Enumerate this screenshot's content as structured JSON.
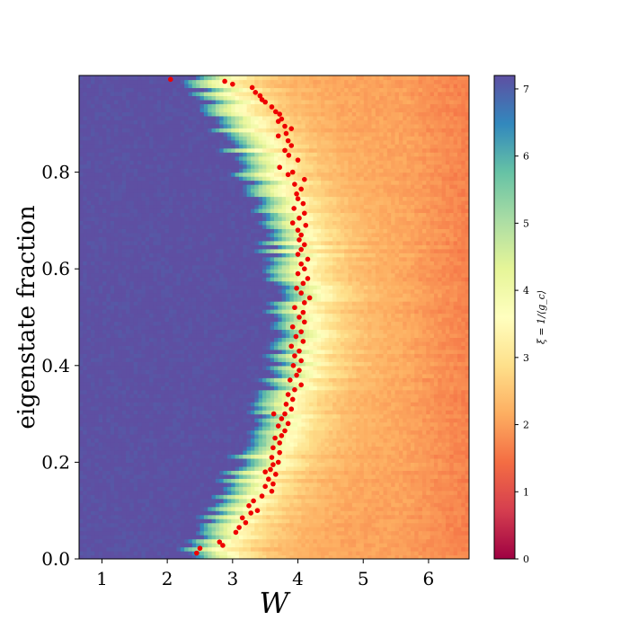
{
  "chart_data": {
    "type": "heatmap",
    "title": "",
    "xlabel": "W",
    "ylabel": "eigenstate fraction",
    "xlim": [
      0.65,
      6.62
    ],
    "ylim": [
      0.0,
      1.0
    ],
    "x_ticks": [
      {
        "value": 1,
        "label": "1"
      },
      {
        "value": 2,
        "label": "2"
      },
      {
        "value": 3,
        "label": "3"
      },
      {
        "value": 4,
        "label": "4"
      },
      {
        "value": 5,
        "label": "5"
      },
      {
        "value": 6,
        "label": "6"
      }
    ],
    "y_ticks": [
      {
        "value": 0.0,
        "label": "0.0"
      },
      {
        "value": 0.2,
        "label": "0.2"
      },
      {
        "value": 0.4,
        "label": "0.4"
      },
      {
        "value": 0.6,
        "label": "0.6"
      },
      {
        "value": 0.8,
        "label": "0.8"
      }
    ],
    "colormap": "Spectral",
    "colorbar": {
      "label": "ξ = 1/⟨g_c⟩",
      "range": [
        0,
        7.2
      ],
      "ticks": [
        {
          "value": 0,
          "label": "0"
        },
        {
          "value": 1,
          "label": "1"
        },
        {
          "value": 2,
          "label": "2"
        },
        {
          "value": 3,
          "label": "3"
        },
        {
          "value": 4,
          "label": "4"
        },
        {
          "value": 5,
          "label": "5"
        },
        {
          "value": 6,
          "label": "6"
        },
        {
          "value": 7,
          "label": "7"
        }
      ]
    },
    "marker_color": "#ee0000",
    "critical_points": [
      [
        2.05,
        0.992
      ],
      [
        2.88,
        0.988
      ],
      [
        3.0,
        0.982
      ],
      [
        3.3,
        0.975
      ],
      [
        3.35,
        0.965
      ],
      [
        3.42,
        0.958
      ],
      [
        3.45,
        0.95
      ],
      [
        3.5,
        0.945
      ],
      [
        3.6,
        0.935
      ],
      [
        3.66,
        0.925
      ],
      [
        3.72,
        0.92
      ],
      [
        3.75,
        0.91
      ],
      [
        3.7,
        0.905
      ],
      [
        3.8,
        0.895
      ],
      [
        3.9,
        0.89
      ],
      [
        3.82,
        0.88
      ],
      [
        3.7,
        0.875
      ],
      [
        3.85,
        0.865
      ],
      [
        3.9,
        0.855
      ],
      [
        3.8,
        0.845
      ],
      [
        3.86,
        0.835
      ],
      [
        4.0,
        0.825
      ],
      [
        3.72,
        0.81
      ],
      [
        3.92,
        0.8
      ],
      [
        3.85,
        0.795
      ],
      [
        4.1,
        0.785
      ],
      [
        3.95,
        0.775
      ],
      [
        4.05,
        0.765
      ],
      [
        3.98,
        0.755
      ],
      [
        4.0,
        0.745
      ],
      [
        4.08,
        0.735
      ],
      [
        3.94,
        0.725
      ],
      [
        4.1,
        0.715
      ],
      [
        4.02,
        0.705
      ],
      [
        3.92,
        0.695
      ],
      [
        4.12,
        0.69
      ],
      [
        4.0,
        0.68
      ],
      [
        4.05,
        0.67
      ],
      [
        4.02,
        0.66
      ],
      [
        4.1,
        0.65
      ],
      [
        4.05,
        0.64
      ],
      [
        4.0,
        0.63
      ],
      [
        4.15,
        0.62
      ],
      [
        4.05,
        0.61
      ],
      [
        4.1,
        0.6
      ],
      [
        4.0,
        0.59
      ],
      [
        4.15,
        0.58
      ],
      [
        4.08,
        0.57
      ],
      [
        3.98,
        0.56
      ],
      [
        4.05,
        0.55
      ],
      [
        4.18,
        0.54
      ],
      [
        4.1,
        0.53
      ],
      [
        3.95,
        0.52
      ],
      [
        4.08,
        0.51
      ],
      [
        4.02,
        0.5
      ],
      [
        4.1,
        0.49
      ],
      [
        3.92,
        0.48
      ],
      [
        4.05,
        0.47
      ],
      [
        3.97,
        0.46
      ],
      [
        4.08,
        0.45
      ],
      [
        3.9,
        0.44
      ],
      [
        4.02,
        0.43
      ],
      [
        3.95,
        0.42
      ],
      [
        4.05,
        0.41
      ],
      [
        3.93,
        0.4
      ],
      [
        4.02,
        0.39
      ],
      [
        3.98,
        0.38
      ],
      [
        3.88,
        0.37
      ],
      [
        4.05,
        0.36
      ],
      [
        3.95,
        0.35
      ],
      [
        3.85,
        0.34
      ],
      [
        3.92,
        0.33
      ],
      [
        3.82,
        0.32
      ],
      [
        3.9,
        0.31
      ],
      [
        3.8,
        0.3
      ],
      [
        3.63,
        0.3
      ],
      [
        3.75,
        0.29
      ],
      [
        3.85,
        0.28
      ],
      [
        3.7,
        0.275
      ],
      [
        3.8,
        0.265
      ],
      [
        3.75,
        0.255
      ],
      [
        3.65,
        0.25
      ],
      [
        3.72,
        0.24
      ],
      [
        3.62,
        0.23
      ],
      [
        3.72,
        0.22
      ],
      [
        3.6,
        0.21
      ],
      [
        3.7,
        0.2
      ],
      [
        3.62,
        0.195
      ],
      [
        3.58,
        0.185
      ],
      [
        3.5,
        0.18
      ],
      [
        3.66,
        0.175
      ],
      [
        3.55,
        0.165
      ],
      [
        3.62,
        0.155
      ],
      [
        3.5,
        0.15
      ],
      [
        3.6,
        0.14
      ],
      [
        3.45,
        0.13
      ],
      [
        3.32,
        0.12
      ],
      [
        3.25,
        0.11
      ],
      [
        3.38,
        0.1
      ],
      [
        3.28,
        0.095
      ],
      [
        3.15,
        0.085
      ],
      [
        3.2,
        0.075
      ],
      [
        3.1,
        0.065
      ],
      [
        3.05,
        0.055
      ],
      [
        2.8,
        0.035
      ],
      [
        2.85,
        0.028
      ],
      [
        2.5,
        0.022
      ],
      [
        2.45,
        0.012
      ]
    ]
  }
}
